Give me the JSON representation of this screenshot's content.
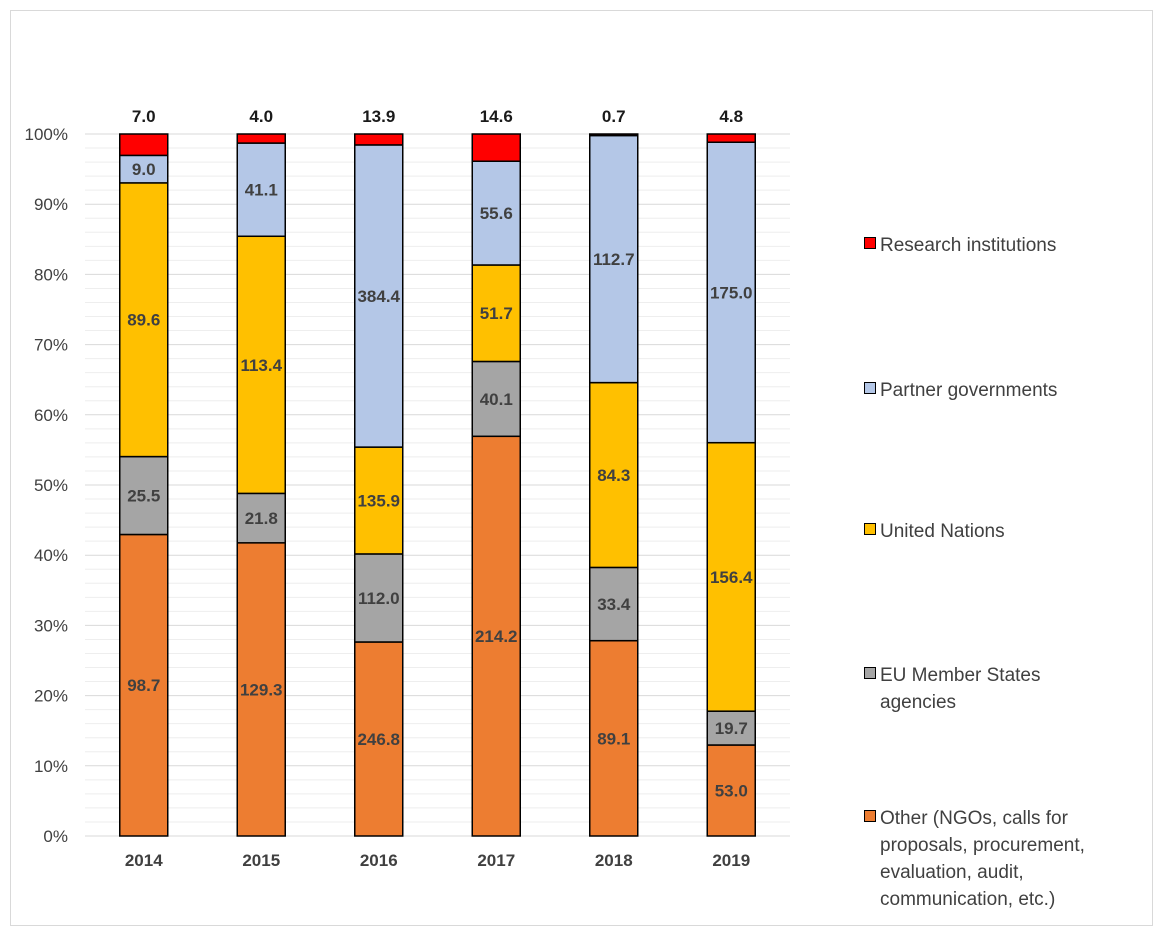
{
  "chart_data": {
    "type": "bar",
    "stacked": "percent",
    "categories": [
      "2014",
      "2015",
      "2016",
      "2017",
      "2018",
      "2019"
    ],
    "series": [
      {
        "name": "Other (NGOs, calls for proposals, procurement, evaluation, audit, communication, etc.)",
        "color": "#ed7d31",
        "values": [
          98.7,
          129.3,
          246.8,
          214.2,
          89.1,
          53.0
        ],
        "labels": [
          "98.7",
          "129.3",
          "246.8",
          "214.2",
          "89.1",
          "53.0"
        ]
      },
      {
        "name": "EU Member States agencies",
        "color": "#a5a5a5",
        "values": [
          25.5,
          21.8,
          112.0,
          40.1,
          33.4,
          19.7
        ],
        "labels": [
          "25.5",
          "21.8",
          "112.0",
          "40.1",
          "33.4",
          "19.7"
        ]
      },
      {
        "name": "United Nations",
        "color": "#ffc000",
        "values": [
          89.6,
          113.4,
          135.9,
          51.7,
          84.3,
          156.4
        ],
        "labels": [
          "89.6",
          "113.4",
          "135.9",
          "51.7",
          "84.3",
          "156.4"
        ]
      },
      {
        "name": "Partner governments",
        "color": "#b4c7e7",
        "values": [
          9.0,
          41.1,
          384.4,
          55.6,
          112.7,
          175.0
        ],
        "labels": [
          "9.0",
          "41.1",
          "384.4",
          "55.6",
          "112.7",
          "175.0"
        ]
      },
      {
        "name": "Research institutions",
        "color": "#ff0000",
        "values": [
          7.0,
          4.0,
          13.9,
          14.6,
          0.7,
          4.8
        ],
        "labels": [
          "7.0",
          "4.0",
          "13.9",
          "14.6",
          "0.7",
          "4.8"
        ]
      }
    ],
    "y_ticks": [
      "0%",
      "10%",
      "20%",
      "30%",
      "40%",
      "50%",
      "60%",
      "70%",
      "80%",
      "90%",
      "100%"
    ],
    "ylim": [
      0,
      100
    ],
    "grid": true,
    "legend_position": "right",
    "title": "",
    "xlabel": "",
    "ylabel": ""
  },
  "legend": {
    "items": [
      {
        "label": "Research institutions",
        "color": "#ff0000"
      },
      {
        "label": "Partner governments",
        "color": "#b4c7e7"
      },
      {
        "label": "United Nations",
        "color": "#ffc000"
      },
      {
        "label": "EU Member States agencies",
        "color": "#a5a5a5"
      },
      {
        "label": "Other (NGOs, calls for proposals, procurement, evaluation, audit, communication, etc.)",
        "color": "#ed7d31"
      }
    ]
  }
}
